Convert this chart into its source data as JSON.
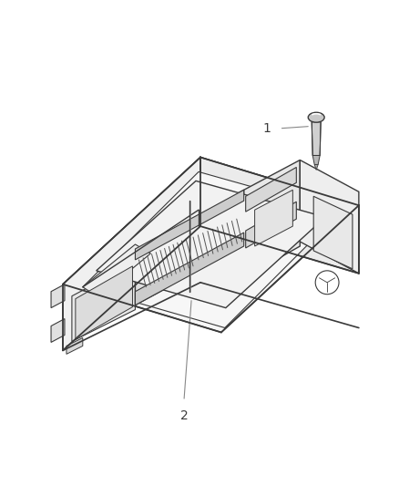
{
  "background_color": "#ffffff",
  "line_color": "#3a3a3a",
  "line_width": 1.0,
  "fig_width": 4.38,
  "fig_height": 5.33,
  "dpi": 100,
  "label_1_text": "1",
  "label_2_text": "2",
  "fill_top": "#f7f7f7",
  "fill_front": "#f0f0f0",
  "fill_right": "#ebebeb",
  "fill_connector": "#e8e8e8",
  "fill_dark": "#d0d0d0"
}
